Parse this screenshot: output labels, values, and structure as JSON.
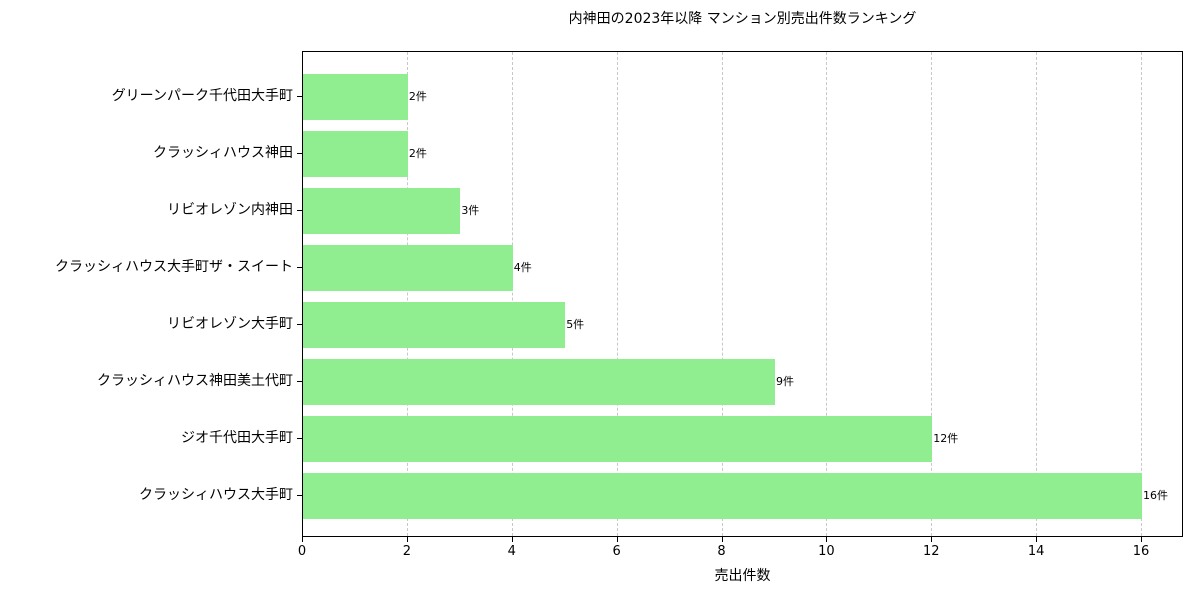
{
  "chart_data": {
    "type": "bar",
    "orientation": "horizontal",
    "title": "内神田の2023年以降 マンション別売出件数ランキング",
    "xlabel": "売出件数",
    "ylabel": "",
    "categories": [
      "グリーンパーク千代田大手町",
      "クラッシィハウス神田",
      "リビオレゾン内神田",
      "クラッシィハウス大手町ザ・スイート",
      "リビオレゾン大手町",
      "クラッシィハウス神田美土代町",
      "ジオ千代田大手町",
      "クラッシィハウス大手町"
    ],
    "values": [
      2,
      2,
      3,
      4,
      5,
      9,
      12,
      16
    ],
    "value_labels": [
      "2件",
      "2件",
      "3件",
      "4件",
      "5件",
      "9件",
      "12件",
      "16件"
    ],
    "xlim": [
      0,
      16.8
    ],
    "xticks": [
      "0",
      "2",
      "4",
      "6",
      "8",
      "10",
      "12",
      "14",
      "16"
    ],
    "grid": {
      "x": true,
      "y": false,
      "style": "dashed"
    },
    "bar_color": "#90ee90",
    "legend": null
  }
}
